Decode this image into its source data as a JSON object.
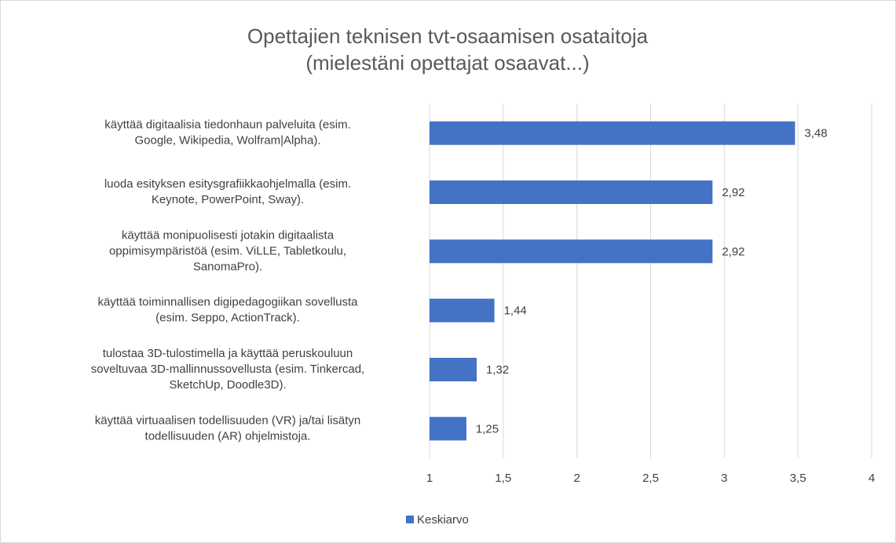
{
  "chart_data": {
    "type": "barh",
    "title": "Opettajien teknisen tvt-osaamisen osataitoja\n(mielestäni opettajat osaavat...)",
    "categories": [
      "käyttää digitaalisia tiedonhaun palveluita (esim.\nGoogle, Wikipedia, Wolfram|Alpha).",
      "luoda esityksen esitysgrafiikkaohjelmalla (esim.\nKeynote, PowerPoint, Sway).",
      "käyttää monipuolisesti jotakin digitaalista\noppimisympäristöä (esim. ViLLE, Tabletkoulu,\nSanomaPro).",
      "käyttää toiminnallisen digipedagogiikan sovellusta\n(esim. Seppo, ActionTrack).",
      "tulostaa 3D-tulostimella ja käyttää peruskouluun\nsoveltuvaa 3D-mallinnussovellusta (esim. Tinkercad,\nSketchUp, Doodle3D).",
      "käyttää virtuaalisen todellisuuden (VR) ja/tai lisätyn\ntodellisuuden (AR) ohjelmistoja."
    ],
    "series": [
      {
        "name": "Keskiarvo",
        "color": "#4472c4",
        "values": [
          3.48,
          2.92,
          2.92,
          1.44,
          1.32,
          1.25
        ],
        "value_labels": [
          "3,48",
          "2,92",
          "2,92",
          "1,44",
          "1,32",
          "1,25"
        ]
      }
    ],
    "xlim": [
      1,
      4
    ],
    "xticks": [
      1,
      {
        "value": 1.5,
        "label": "1,5"
      },
      2,
      {
        "value": 2.5,
        "label": "2,5"
      },
      3,
      {
        "value": 3.5,
        "label": "3,5"
      },
      4
    ],
    "grid": true,
    "legend": "bottom"
  }
}
